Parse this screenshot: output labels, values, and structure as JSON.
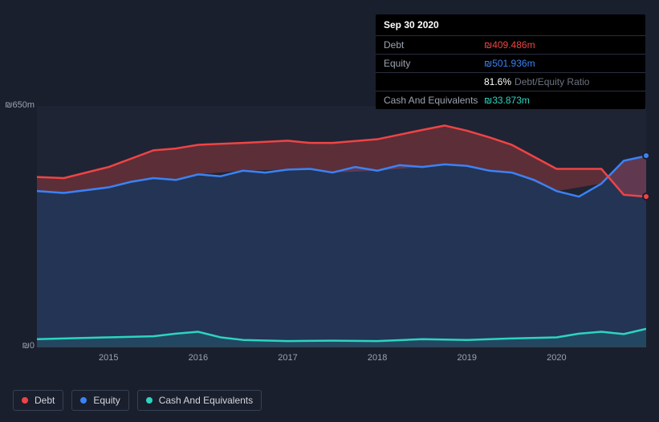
{
  "tooltip": {
    "date": "Sep 30 2020",
    "rows": [
      {
        "label": "Debt",
        "value": "₪409.486m",
        "color": "#ef4444"
      },
      {
        "label": "Equity",
        "value": "₪501.936m",
        "color": "#3b82f6"
      },
      {
        "label": "",
        "value": "81.6%",
        "extra": "Debt/Equity Ratio",
        "color": "#ffffff"
      },
      {
        "label": "Cash And Equivalents",
        "value": "₪33.873m",
        "color": "#2dd4bf"
      }
    ]
  },
  "chart": {
    "type": "area",
    "background_color": "#1e2433",
    "page_background": "#1a1f2e",
    "ymin": 0,
    "ymax": 650,
    "ylabels": [
      {
        "v": 650,
        "text": "₪650m"
      },
      {
        "v": 0,
        "text": "₪0"
      }
    ],
    "x_start": 2014.2,
    "x_end": 2021.0,
    "xticks": [
      2015,
      2016,
      2017,
      2018,
      2019,
      2020
    ],
    "hover_x": 2020.75,
    "series": [
      {
        "name": "Debt",
        "color": "#ef4444",
        "fill": "rgba(239,68,68,0.30)",
        "line_width": 2.5,
        "stack_on": "Equity",
        "points": [
          [
            2014.2,
            38
          ],
          [
            2014.5,
            40
          ],
          [
            2015.0,
            55
          ],
          [
            2015.5,
            75
          ],
          [
            2015.75,
            85
          ],
          [
            2016.0,
            80
          ],
          [
            2016.5,
            75
          ],
          [
            2017.0,
            78
          ],
          [
            2017.25,
            70
          ],
          [
            2017.5,
            80
          ],
          [
            2018.0,
            85
          ],
          [
            2018.5,
            100
          ],
          [
            2018.75,
            105
          ],
          [
            2019.0,
            95
          ],
          [
            2019.25,
            90
          ],
          [
            2019.5,
            75
          ],
          [
            2020.0,
            60
          ],
          [
            2020.5,
            40
          ],
          [
            2020.75,
            -92
          ],
          [
            2021.0,
            -110
          ]
        ]
      },
      {
        "name": "Equity",
        "color": "#3b82f6",
        "fill": "rgba(59,130,246,0.18)",
        "line_width": 2.5,
        "points": [
          [
            2014.2,
            420
          ],
          [
            2014.5,
            415
          ],
          [
            2015.0,
            430
          ],
          [
            2015.25,
            445
          ],
          [
            2015.5,
            455
          ],
          [
            2015.75,
            450
          ],
          [
            2016.0,
            465
          ],
          [
            2016.25,
            460
          ],
          [
            2016.5,
            475
          ],
          [
            2016.75,
            470
          ],
          [
            2017.0,
            478
          ],
          [
            2017.25,
            480
          ],
          [
            2017.5,
            470
          ],
          [
            2017.75,
            485
          ],
          [
            2018.0,
            475
          ],
          [
            2018.25,
            490
          ],
          [
            2018.5,
            485
          ],
          [
            2018.75,
            492
          ],
          [
            2019.0,
            488
          ],
          [
            2019.25,
            475
          ],
          [
            2019.5,
            470
          ],
          [
            2019.75,
            450
          ],
          [
            2020.0,
            420
          ],
          [
            2020.25,
            405
          ],
          [
            2020.5,
            440
          ],
          [
            2020.75,
            501.9
          ],
          [
            2021.0,
            515
          ]
        ]
      },
      {
        "name": "Cash And Equivalents",
        "color": "#2dd4bf",
        "fill": "rgba(45,212,191,0.12)",
        "line_width": 2.5,
        "points": [
          [
            2014.2,
            20
          ],
          [
            2014.5,
            22
          ],
          [
            2015.0,
            25
          ],
          [
            2015.5,
            28
          ],
          [
            2015.75,
            35
          ],
          [
            2016.0,
            40
          ],
          [
            2016.25,
            25
          ],
          [
            2016.5,
            18
          ],
          [
            2017.0,
            15
          ],
          [
            2017.5,
            16
          ],
          [
            2018.0,
            15
          ],
          [
            2018.5,
            20
          ],
          [
            2019.0,
            18
          ],
          [
            2019.5,
            22
          ],
          [
            2020.0,
            25
          ],
          [
            2020.25,
            35
          ],
          [
            2020.5,
            40
          ],
          [
            2020.75,
            33.9
          ],
          [
            2021.0,
            48
          ]
        ]
      }
    ]
  },
  "legend": {
    "items": [
      {
        "label": "Debt",
        "color": "#ef4444"
      },
      {
        "label": "Equity",
        "color": "#3b82f6"
      },
      {
        "label": "Cash And Equivalents",
        "color": "#2dd4bf"
      }
    ]
  }
}
